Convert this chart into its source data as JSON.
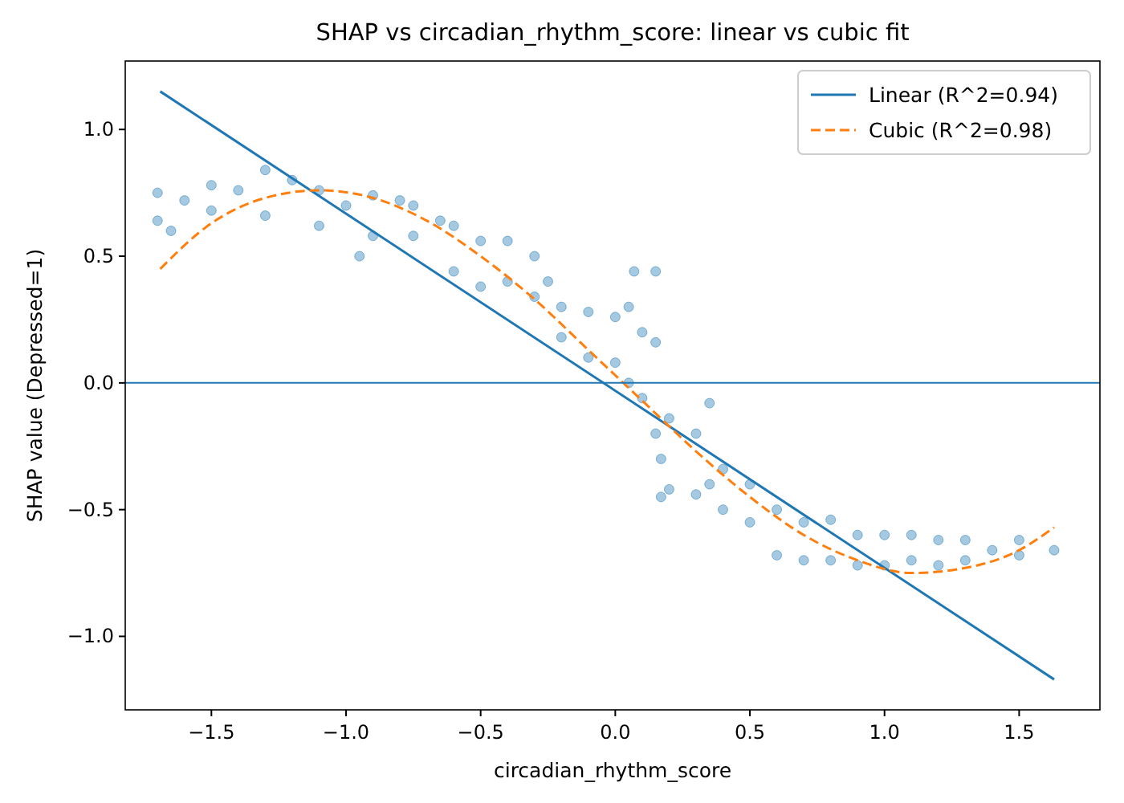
{
  "chart_data": {
    "type": "scatter",
    "title": "SHAP vs circadian_rhythm_score: linear vs cubic fit",
    "xlabel": "circadian_rhythm_score",
    "ylabel": "SHAP value (Depressed=1)",
    "xlim": [
      -1.82,
      1.8
    ],
    "ylim": [
      -1.29,
      1.27
    ],
    "xticks": [
      {
        "value": -1.5,
        "label": "−1.5"
      },
      {
        "value": -1.0,
        "label": "−1.0"
      },
      {
        "value": -0.5,
        "label": "−0.5"
      },
      {
        "value": 0,
        "label": "0.0"
      },
      {
        "value": 0.5,
        "label": "0.5"
      },
      {
        "value": 1.0,
        "label": "1.0"
      },
      {
        "value": 1.5,
        "label": "1.5"
      }
    ],
    "yticks": [
      {
        "value": -1.0,
        "label": "−1.0"
      },
      {
        "value": -0.5,
        "label": "−0.5"
      },
      {
        "value": 0,
        "label": "0.0"
      },
      {
        "value": 0.5,
        "label": "0.5"
      },
      {
        "value": 1.0,
        "label": "1.0"
      }
    ],
    "grid": false,
    "legend": "top right",
    "ref_lines": [
      {
        "axis": "y",
        "value": 0,
        "color": "#1f77b4"
      }
    ],
    "series": [
      {
        "marker": "circle",
        "color": "#1f77b4",
        "x": [
          -1.7,
          -1.7,
          -1.65,
          -1.6,
          -1.5,
          -1.5,
          -1.4,
          -1.3,
          -1.3,
          -1.2,
          -1.1,
          -1.1,
          -1.0,
          -0.95,
          -0.9,
          -0.9,
          -0.8,
          -0.75,
          -0.75,
          -0.65,
          -0.6,
          -0.6,
          -0.5,
          -0.5,
          -0.4,
          -0.4,
          -0.3,
          -0.3,
          -0.25,
          -0.2,
          -0.2,
          -0.1,
          -0.1,
          0,
          0,
          0.05,
          0.05,
          0.07,
          0.1,
          0.1,
          0.15,
          0.15,
          0.15,
          0.17,
          0.17,
          0.2,
          0.2,
          0.3,
          0.3,
          0.35,
          0.35,
          0.4,
          0.4,
          0.5,
          0.5,
          0.6,
          0.6,
          0.7,
          0.7,
          0.8,
          0.8,
          0.9,
          0.9,
          1.0,
          1.0,
          1.1,
          1.1,
          1.2,
          1.2,
          1.3,
          1.3,
          1.4,
          1.5,
          1.5,
          1.63
        ],
        "values": [
          0.75,
          0.64,
          0.6,
          0.72,
          0.78,
          0.68,
          0.76,
          0.84,
          0.66,
          0.8,
          0.76,
          0.62,
          0.7,
          0.5,
          0.74,
          0.58,
          0.72,
          0.7,
          0.58,
          0.64,
          0.62,
          0.44,
          0.56,
          0.38,
          0.56,
          0.4,
          0.5,
          0.34,
          0.4,
          0.3,
          0.18,
          0.28,
          0.1,
          0.26,
          0.08,
          0.3,
          0.0,
          0.44,
          0.2,
          -0.06,
          0.16,
          -0.2,
          0.44,
          -0.3,
          -0.45,
          -0.14,
          -0.42,
          -0.2,
          -0.44,
          -0.08,
          -0.4,
          -0.34,
          -0.5,
          -0.4,
          -0.55,
          -0.5,
          -0.68,
          -0.55,
          -0.7,
          -0.54,
          -0.7,
          -0.6,
          -0.72,
          -0.6,
          -0.72,
          -0.6,
          -0.7,
          -0.62,
          -0.72,
          -0.62,
          -0.7,
          -0.66,
          -0.68,
          -0.62,
          -0.66
        ]
      },
      {
        "type": "line",
        "name": "Linear (R^2=0.94)",
        "color": "#1f77b4",
        "line_style": "solid",
        "marker": "none",
        "x": [
          -1.69,
          1.63
        ],
        "values": [
          1.15,
          -1.17
        ]
      },
      {
        "type": "line",
        "name": "Cubic (R^2=0.98)",
        "color": "#ff7f0e",
        "line_style": "dashed",
        "marker": "none",
        "x": [
          -1.69,
          -1.5,
          -1.3,
          -1.1,
          -0.9,
          -0.7,
          -0.5,
          -0.3,
          -0.1,
          0.1,
          0.3,
          0.5,
          0.7,
          0.9,
          1.1,
          1.3,
          1.5,
          1.63
        ],
        "values": [
          0.45,
          0.63,
          0.73,
          0.76,
          0.73,
          0.64,
          0.5,
          0.33,
          0.13,
          -0.07,
          -0.27,
          -0.45,
          -0.6,
          -0.7,
          -0.75,
          -0.73,
          -0.66,
          -0.57
        ]
      }
    ]
  }
}
